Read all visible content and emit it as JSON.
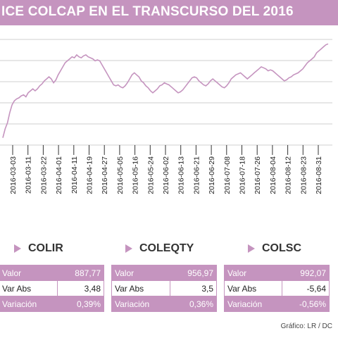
{
  "header": {
    "title": "ICE COLCAP EN EL TRANSCURSO DEL 2016"
  },
  "chart_data": {
    "type": "line",
    "title": "ICE COLCAP EN EL TRANSCURSO DEL 2016",
    "xlabel": "",
    "ylabel": "",
    "grid": true,
    "x_ticks": [
      "2016-03-03",
      "2016-03-11",
      "2016-03-22",
      "2016-04-01",
      "2016-04-11",
      "2016-04-19",
      "2016-04-27",
      "2016-05-05",
      "2016-05-16",
      "2016-05-24",
      "2016-06-02",
      "2016-06-13",
      "2016-06-21",
      "2016-06-29",
      "2016-07-08",
      "2016-07-18",
      "2016-07-26",
      "2016-08-04",
      "2016-08-12",
      "2016-08-23",
      "2016-08-31"
    ],
    "series": [
      {
        "values": [
          0.03,
          0.12,
          0.18,
          0.28,
          0.36,
          0.4,
          0.42,
          0.43,
          0.45,
          0.46,
          0.44,
          0.48,
          0.5,
          0.52,
          0.5,
          0.52,
          0.55,
          0.57,
          0.6,
          0.62,
          0.64,
          0.62,
          0.58,
          0.61,
          0.66,
          0.7,
          0.74,
          0.78,
          0.8,
          0.82,
          0.84,
          0.83,
          0.86,
          0.84,
          0.83,
          0.85,
          0.86,
          0.84,
          0.83,
          0.82,
          0.8,
          0.81,
          0.8,
          0.76,
          0.72,
          0.68,
          0.64,
          0.6,
          0.56,
          0.55,
          0.56,
          0.54,
          0.53,
          0.55,
          0.58,
          0.62,
          0.66,
          0.68,
          0.66,
          0.64,
          0.6,
          0.58,
          0.55,
          0.53,
          0.5,
          0.48,
          0.5,
          0.52,
          0.55,
          0.56,
          0.58,
          0.57,
          0.56,
          0.54,
          0.52,
          0.5,
          0.48,
          0.49,
          0.51,
          0.54,
          0.57,
          0.6,
          0.63,
          0.64,
          0.63,
          0.6,
          0.58,
          0.56,
          0.55,
          0.57,
          0.6,
          0.62,
          0.6,
          0.58,
          0.56,
          0.54,
          0.53,
          0.55,
          0.58,
          0.62,
          0.64,
          0.66,
          0.67,
          0.68,
          0.66,
          0.64,
          0.62,
          0.64,
          0.66,
          0.68,
          0.7,
          0.72,
          0.74,
          0.73,
          0.72,
          0.7,
          0.71,
          0.7,
          0.68,
          0.66,
          0.64,
          0.62,
          0.6,
          0.61,
          0.63,
          0.64,
          0.66,
          0.67,
          0.68,
          0.7,
          0.72,
          0.75,
          0.78,
          0.8,
          0.82,
          0.84,
          0.88,
          0.9,
          0.92,
          0.94,
          0.96,
          0.97
        ]
      }
    ]
  },
  "indices": [
    {
      "name": "COLIR",
      "rows": [
        {
          "label": "Valor",
          "value": "887,77"
        },
        {
          "label": "Var Abs",
          "value": "3,48"
        },
        {
          "label": "Variación",
          "value": "0,39%"
        }
      ]
    },
    {
      "name": "COLEQTY",
      "rows": [
        {
          "label": "Valor",
          "value": "956,97"
        },
        {
          "label": "Var Abs",
          "value": "3,5"
        },
        {
          "label": "Variación",
          "value": "0,36%"
        }
      ]
    },
    {
      "name": "COLSC",
      "rows": [
        {
          "label": "Valor",
          "value": "992,07"
        },
        {
          "label": "Var Abs",
          "value": "-5,64"
        },
        {
          "label": "Variación",
          "value": "-0,56%"
        }
      ]
    }
  ],
  "footer": {
    "source": "Gráfico: LR / DC"
  },
  "colors": {
    "accent": "#c594bf",
    "line": "#c594bf",
    "grid": "#bfbfbf"
  }
}
